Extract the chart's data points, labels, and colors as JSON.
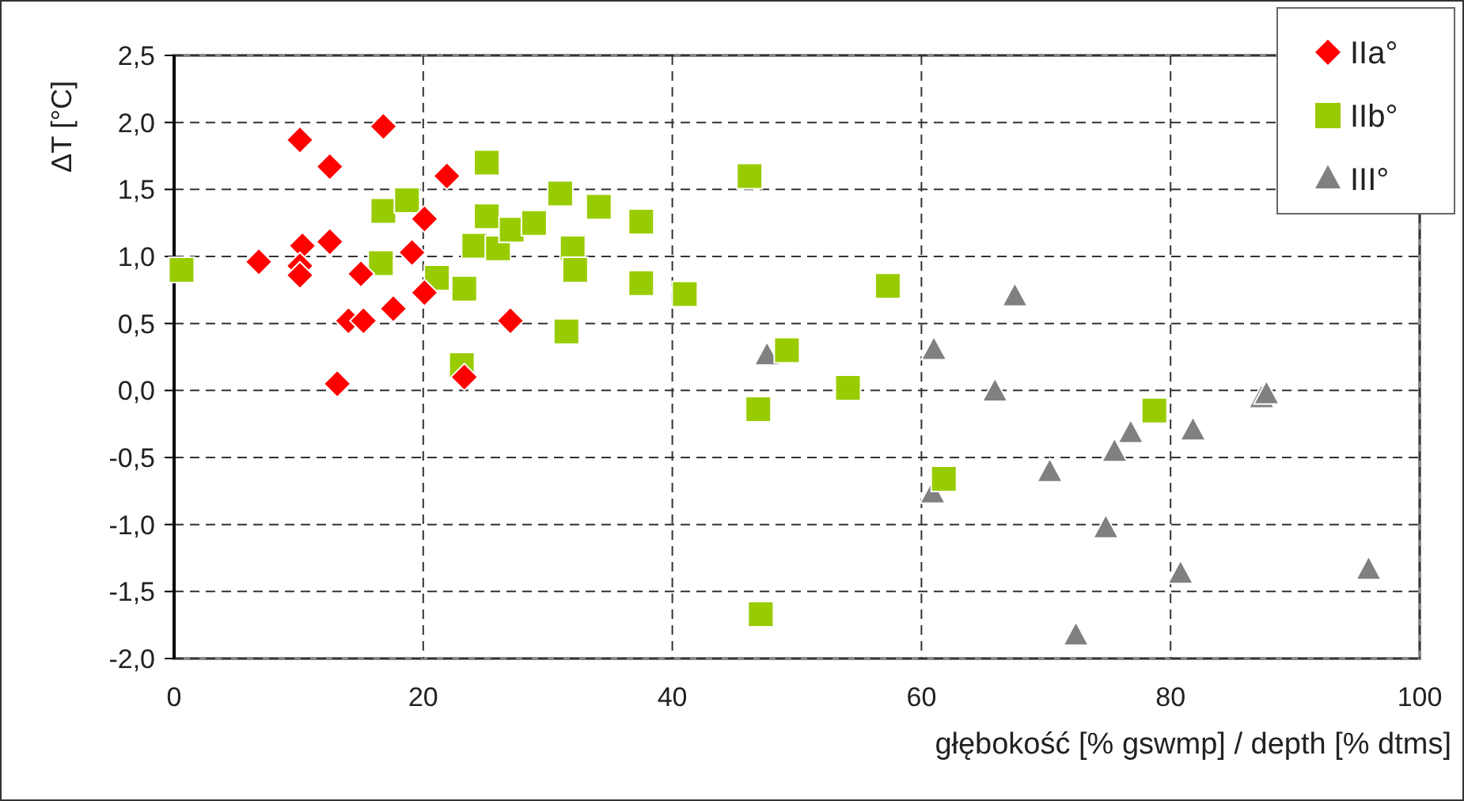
{
  "chart_data": {
    "type": "scatter",
    "xlabel": "głębokość [% gswmp] / depth [% dtms]",
    "ylabel": "ΔT [°C]",
    "xlim": [
      0,
      100
    ],
    "xticks": [
      0,
      20,
      40,
      60,
      80,
      100
    ],
    "ylim": [
      -2,
      2.5
    ],
    "yticks": [
      {
        "value": -2,
        "label": "-2,0"
      },
      {
        "value": -1.5,
        "label": "-1,5"
      },
      {
        "value": -1,
        "label": "-1,0"
      },
      {
        "value": -0.5,
        "label": "-0,5"
      },
      {
        "value": 0,
        "label": "0,0"
      },
      {
        "value": 0.5,
        "label": "0,5"
      },
      {
        "value": 1,
        "label": "1,0"
      },
      {
        "value": 1.5,
        "label": "1,5"
      },
      {
        "value": 2,
        "label": "2,0"
      },
      {
        "value": 2.5,
        "label": "2,5"
      }
    ],
    "grid": true,
    "legend": "top right",
    "series": [
      {
        "name": "IIa°",
        "color": "#ff0000",
        "marker": "diamond",
        "x": [
          6.8,
          10.1,
          10.3,
          10.1,
          10.1,
          12.5,
          12.5,
          13.1,
          14.0,
          15.2,
          15.0,
          16.8,
          17.6,
          19.1,
          20.1,
          20.1,
          21.9,
          27.0,
          23.3
        ],
        "values": [
          0.96,
          1.87,
          1.08,
          0.93,
          0.86,
          1.67,
          1.11,
          0.05,
          0.52,
          0.52,
          0.87,
          1.97,
          0.61,
          1.03,
          1.28,
          0.73,
          1.6,
          0.52,
          0.1
        ]
      },
      {
        "name": "IIb°",
        "color": "#99cc00",
        "marker": "square",
        "x": [
          0.6,
          16.8,
          18.7,
          16.6,
          25.1,
          25.1,
          24.1,
          26.0,
          27.1,
          28.9,
          21.1,
          23.3,
          23.1,
          31.0,
          31.5,
          34.1,
          37.5,
          32.0,
          32.2,
          37.5,
          41.0,
          46.2,
          57.3,
          49.2,
          54.1,
          46.9,
          61.8,
          47.1,
          78.7
        ],
        "values": [
          0.9,
          1.34,
          1.42,
          0.95,
          1.7,
          1.3,
          1.08,
          1.06,
          1.2,
          1.25,
          0.84,
          0.76,
          0.19,
          1.47,
          0.44,
          1.37,
          1.26,
          1.06,
          0.9,
          0.8,
          0.72,
          1.6,
          0.78,
          0.3,
          0.02,
          -0.14,
          -0.66,
          -1.67,
          -0.15
        ]
      },
      {
        "name": "III°",
        "color": "#808080",
        "marker": "triangle",
        "x": [
          47.6,
          61.0,
          67.5,
          65.9,
          87.3,
          87.7,
          81.8,
          76.8,
          75.5,
          70.3,
          60.9,
          74.8,
          80.8,
          95.9,
          72.4
        ],
        "values": [
          0.26,
          0.3,
          0.7,
          -0.01,
          -0.06,
          -0.03,
          -0.3,
          -0.32,
          -0.46,
          -0.61,
          -0.77,
          -1.03,
          -1.37,
          -1.34,
          -1.83
        ]
      }
    ]
  }
}
